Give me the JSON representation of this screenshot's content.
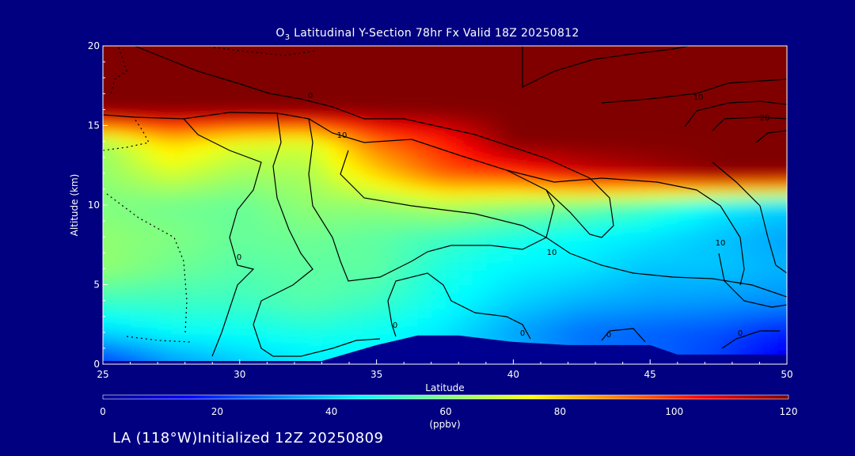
{
  "chart_data": {
    "type": "heatmap",
    "title_prefix": "O",
    "title_subscript": "3",
    "title_rest": " Latitudinal Y-Section 78hr  Fx Valid 18Z 20250812",
    "xlabel": "Latitude",
    "ylabel": "Altitude (km)",
    "xlim": [
      25,
      50
    ],
    "ylim": [
      0,
      20
    ],
    "x_ticks": [
      "25",
      "30",
      "35",
      "40",
      "45",
      "50"
    ],
    "y_ticks": [
      "0",
      "5",
      "10",
      "15",
      "20"
    ],
    "colorbar": {
      "label": "(ppbv)",
      "range": [
        0,
        120
      ],
      "ticks": [
        "0",
        "20",
        "40",
        "60",
        "80",
        "100",
        "120"
      ]
    },
    "colormap": [
      "#00008f",
      "#0000ff",
      "#0080ff",
      "#00ffff",
      "#80ff80",
      "#ffff00",
      "#ff8000",
      "#ff0000",
      "#800000"
    ],
    "background": "#000080",
    "contour_labels": [
      "0",
      "0",
      "0",
      "0",
      "0",
      "0",
      "10",
      "10",
      "10",
      "10",
      "20"
    ],
    "field": {
      "lats": [
        25,
        27.5,
        30,
        32.5,
        35,
        37.5,
        40,
        42.5,
        45,
        47.5,
        50
      ],
      "alts": [
        0,
        2,
        4,
        6,
        8,
        10,
        12,
        14,
        16,
        18,
        20
      ],
      "values": [
        [
          20,
          32,
          38,
          42,
          44,
          40,
          38,
          30,
          28,
          22,
          12
        ],
        [
          40,
          45,
          46,
          48,
          46,
          42,
          34,
          28,
          26,
          24,
          18
        ],
        [
          52,
          52,
          52,
          55,
          52,
          46,
          40,
          36,
          34,
          33,
          32
        ],
        [
          62,
          58,
          55,
          56,
          56,
          48,
          44,
          42,
          38,
          38,
          36
        ],
        [
          62,
          60,
          57,
          58,
          56,
          52,
          48,
          45,
          42,
          38,
          34
        ],
        [
          60,
          58,
          57,
          62,
          62,
          66,
          62,
          58,
          52,
          44,
          40
        ],
        [
          62,
          70,
          64,
          65,
          80,
          95,
          100,
          110,
          115,
          120,
          120
        ],
        [
          64,
          80,
          72,
          70,
          92,
          102,
          120,
          120,
          120,
          120,
          120
        ],
        [
          120,
          120,
          120,
          120,
          120,
          120,
          120,
          120,
          120,
          120,
          120
        ],
        [
          120,
          120,
          120,
          120,
          120,
          120,
          120,
          120,
          120,
          120,
          120
        ],
        [
          120,
          120,
          120,
          120,
          120,
          120,
          120,
          120,
          120,
          120,
          120
        ]
      ]
    },
    "terrain": [
      {
        "lat": 25,
        "alt": 0.2
      },
      {
        "lat": 33,
        "alt": 0.2
      },
      {
        "lat": 35,
        "alt": 1.2
      },
      {
        "lat": 36.5,
        "alt": 1.8
      },
      {
        "lat": 38,
        "alt": 1.8
      },
      {
        "lat": 40,
        "alt": 1.4
      },
      {
        "lat": 42,
        "alt": 1.2
      },
      {
        "lat": 45,
        "alt": 1.2
      },
      {
        "lat": 46,
        "alt": 0.6
      },
      {
        "lat": 50,
        "alt": 0.6
      }
    ]
  },
  "footer": {
    "text": "LA (118°W)Initialized 12Z 20250809"
  }
}
